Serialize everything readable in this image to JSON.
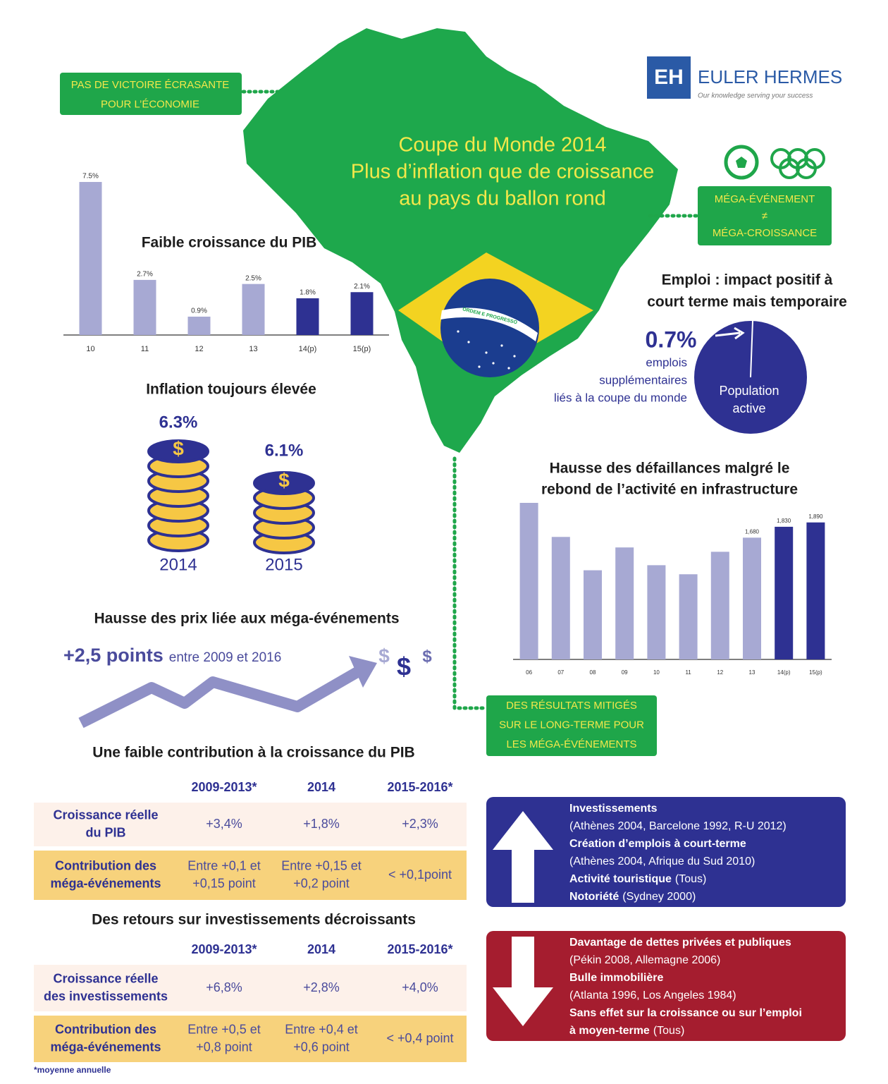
{
  "logo": {
    "mark": "EH",
    "name": "EULER HERMES",
    "tagline": "Our knowledge serving your success"
  },
  "title": [
    "Coupe du Monde 2014",
    "Plus d’inflation que de croissance",
    "au pays du ballon rond"
  ],
  "flag_motto": "ORDEM E PROGRESSO",
  "callouts": [
    {
      "lines": [
        "PAS DE VICTOIRE ÉCRASANTE",
        "POUR L’ÉCONOMIE"
      ]
    },
    {
      "lines": [
        "MÉGA-ÉVÉNEMENT",
        "≠",
        "MÉGA-CROISSANCE"
      ]
    },
    {
      "lines": [
        "DES RÉSULTATS MITIGÉS",
        "SUR LE LONG-TERME POUR",
        "LES MÉGA-ÉVÉNEMENTS"
      ]
    }
  ],
  "chart_data": [
    {
      "type": "bar",
      "title": [
        "Faible croissance du PIB"
      ],
      "categories": [
        "10",
        "11",
        "12",
        "13",
        "14(p)",
        "15(p)"
      ],
      "values": [
        7.5,
        2.7,
        0.9,
        2.5,
        1.8,
        2.1
      ],
      "value_labels": [
        "7.5%",
        "2.7%",
        "0.9%",
        "2.5%",
        "1.8%",
        "2.1%"
      ],
      "colors": [
        "#a7a9d3",
        "#a7a9d3",
        "#a7a9d3",
        "#a7a9d3",
        "#2e3192",
        "#2e3192"
      ]
    },
    {
      "type": "bar",
      "title": [
        "Hausse des défaillances malgré le",
        "rebond de l’activité en infrastructure"
      ],
      "categories": [
        "06",
        "07",
        "08",
        "09",
        "10",
        "11",
        "12",
        "13",
        "14(p)",
        "15(p)"
      ],
      "values": [
        2160,
        1690,
        1230,
        1545,
        1300,
        1175,
        1485,
        1680,
        1830,
        1890
      ],
      "value_labels": [
        null,
        null,
        null,
        null,
        null,
        null,
        null,
        "1,680",
        "1,830",
        "1,890"
      ],
      "colors": [
        "#a7a9d3",
        "#a7a9d3",
        "#a7a9d3",
        "#a7a9d3",
        "#a7a9d3",
        "#a7a9d3",
        "#a7a9d3",
        "#a7a9d3",
        "#2e3192",
        "#2e3192"
      ]
    }
  ],
  "inflation": {
    "title": "Inflation toujours élevée",
    "currency": "$",
    "stacks": [
      {
        "label": "6.3%",
        "year": "2014"
      },
      {
        "label": "6.1%",
        "year": "2015"
      }
    ]
  },
  "employment": {
    "title": [
      "Emploi : impact positif à",
      "court terme mais temporaire"
    ],
    "value": "0.7%",
    "caption": [
      "emplois",
      "supplémentaires",
      "liés à la coupe du monde"
    ],
    "pie_label": [
      "Population",
      "active"
    ]
  },
  "prices": {
    "title": "Hausse des prix liée aux méga-événements",
    "highlight": "+2,5 points",
    "detail": "entre 2009 et 2016"
  },
  "tables": [
    {
      "title": "Une faible contribution à la croissance du PIB",
      "columns": [
        "2009-2013*",
        "2014",
        "2015-2016*"
      ],
      "rows": [
        {
          "label": [
            "Croissance réelle",
            "du PIB"
          ],
          "cells": [
            [
              "+3,4%"
            ],
            [
              "+1,8%"
            ],
            [
              "+2,3%"
            ]
          ]
        },
        {
          "label": [
            "Contribution des",
            "méga-événements"
          ],
          "cells": [
            [
              "Entre +0,1 et",
              "+0,15 point"
            ],
            [
              "Entre +0,15 et",
              "+0,2 point"
            ],
            [
              "< +0,1point"
            ]
          ]
        }
      ]
    },
    {
      "title": "Des retours sur investissements décroissants",
      "columns": [
        "2009-2013*",
        "2014",
        "2015-2016*"
      ],
      "rows": [
        {
          "label": [
            "Croissance réelle",
            "des investissements"
          ],
          "cells": [
            [
              "+6,8%"
            ],
            [
              "+2,8%"
            ],
            [
              "+4,0%"
            ]
          ]
        },
        {
          "label": [
            "Contribution des",
            "méga-événements"
          ],
          "cells": [
            [
              "Entre +0,5 et",
              "+0,8 point"
            ],
            [
              "Entre +0,4 et",
              "+0,6 point"
            ],
            [
              "< +0,4 point"
            ]
          ]
        }
      ]
    }
  ],
  "footnote": "*moyenne annuelle",
  "effects": {
    "positive": [
      [
        {
          "text": "Investissements",
          "bold": true
        }
      ],
      [
        {
          "text": "(Athènes 2004, Barcelone 1992, R-U 2012)",
          "bold": false
        }
      ],
      [
        {
          "text": "Création d’emplois à court-terme",
          "bold": true
        }
      ],
      [
        {
          "text": "(Athènes 2004, Afrique du Sud 2010)",
          "bold": false
        }
      ],
      [
        {
          "text": "Activité touristique",
          "bold": true
        },
        {
          "text": "(Tous)",
          "bold": false
        }
      ],
      [
        {
          "text": "Notoriété",
          "bold": true
        },
        {
          "text": "(Sydney 2000)",
          "bold": false
        }
      ]
    ],
    "negative": [
      [
        {
          "text": "Davantage de dettes privées et publiques",
          "bold": true
        }
      ],
      [
        {
          "text": "(Pékin 2008, Allemagne 2006)",
          "bold": false
        }
      ],
      [
        {
          "text": "Bulle immobilière",
          "bold": true
        }
      ],
      [
        {
          "text": "(Atlanta 1996, Los Angeles 1984)",
          "bold": false
        }
      ],
      [
        {
          "text": "Sans effet sur la croissance ou sur l’emploi",
          "bold": true
        }
      ],
      [
        {
          "text": "à moyen-terme",
          "bold": true
        },
        {
          "text": "(Tous)",
          "bold": false
        }
      ]
    ]
  }
}
